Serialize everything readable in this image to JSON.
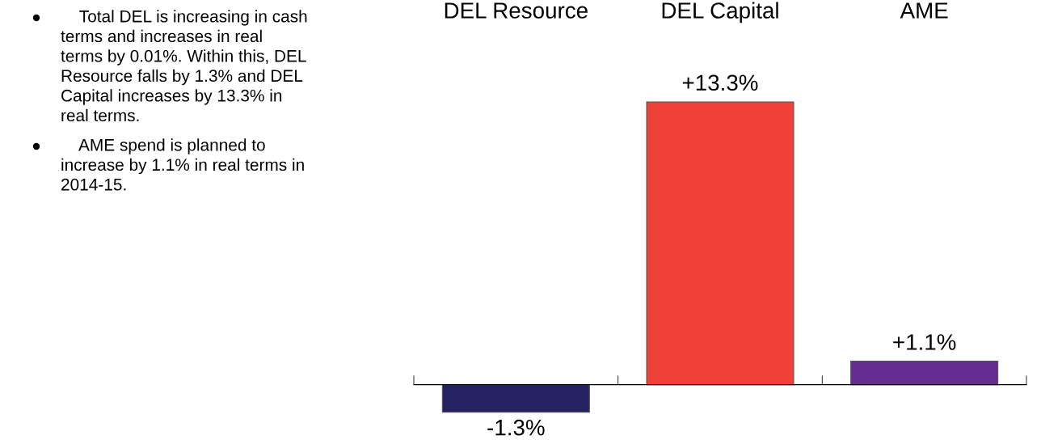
{
  "chart_data": {
    "type": "bar",
    "categories": [
      "DEL Resource",
      "DEL Capital",
      "AME"
    ],
    "values": [
      -1.3,
      13.3,
      1.1
    ],
    "colors": [
      "#262262",
      "#ef4036",
      "#662d91"
    ],
    "value_labels": [
      "-1.3%",
      "+13.3%",
      "+1.1%"
    ],
    "annotations": [
      "Total DEL is increasing in cash terms and increases in real terms by 0.01%. Within this, DEL Resource falls by 1.3% and DEL Capital increases by 13.3% in real terms.",
      "AME spend is planned to increase by 1.1% in real terms in 2014-15."
    ],
    "grid": false,
    "legend": false
  }
}
